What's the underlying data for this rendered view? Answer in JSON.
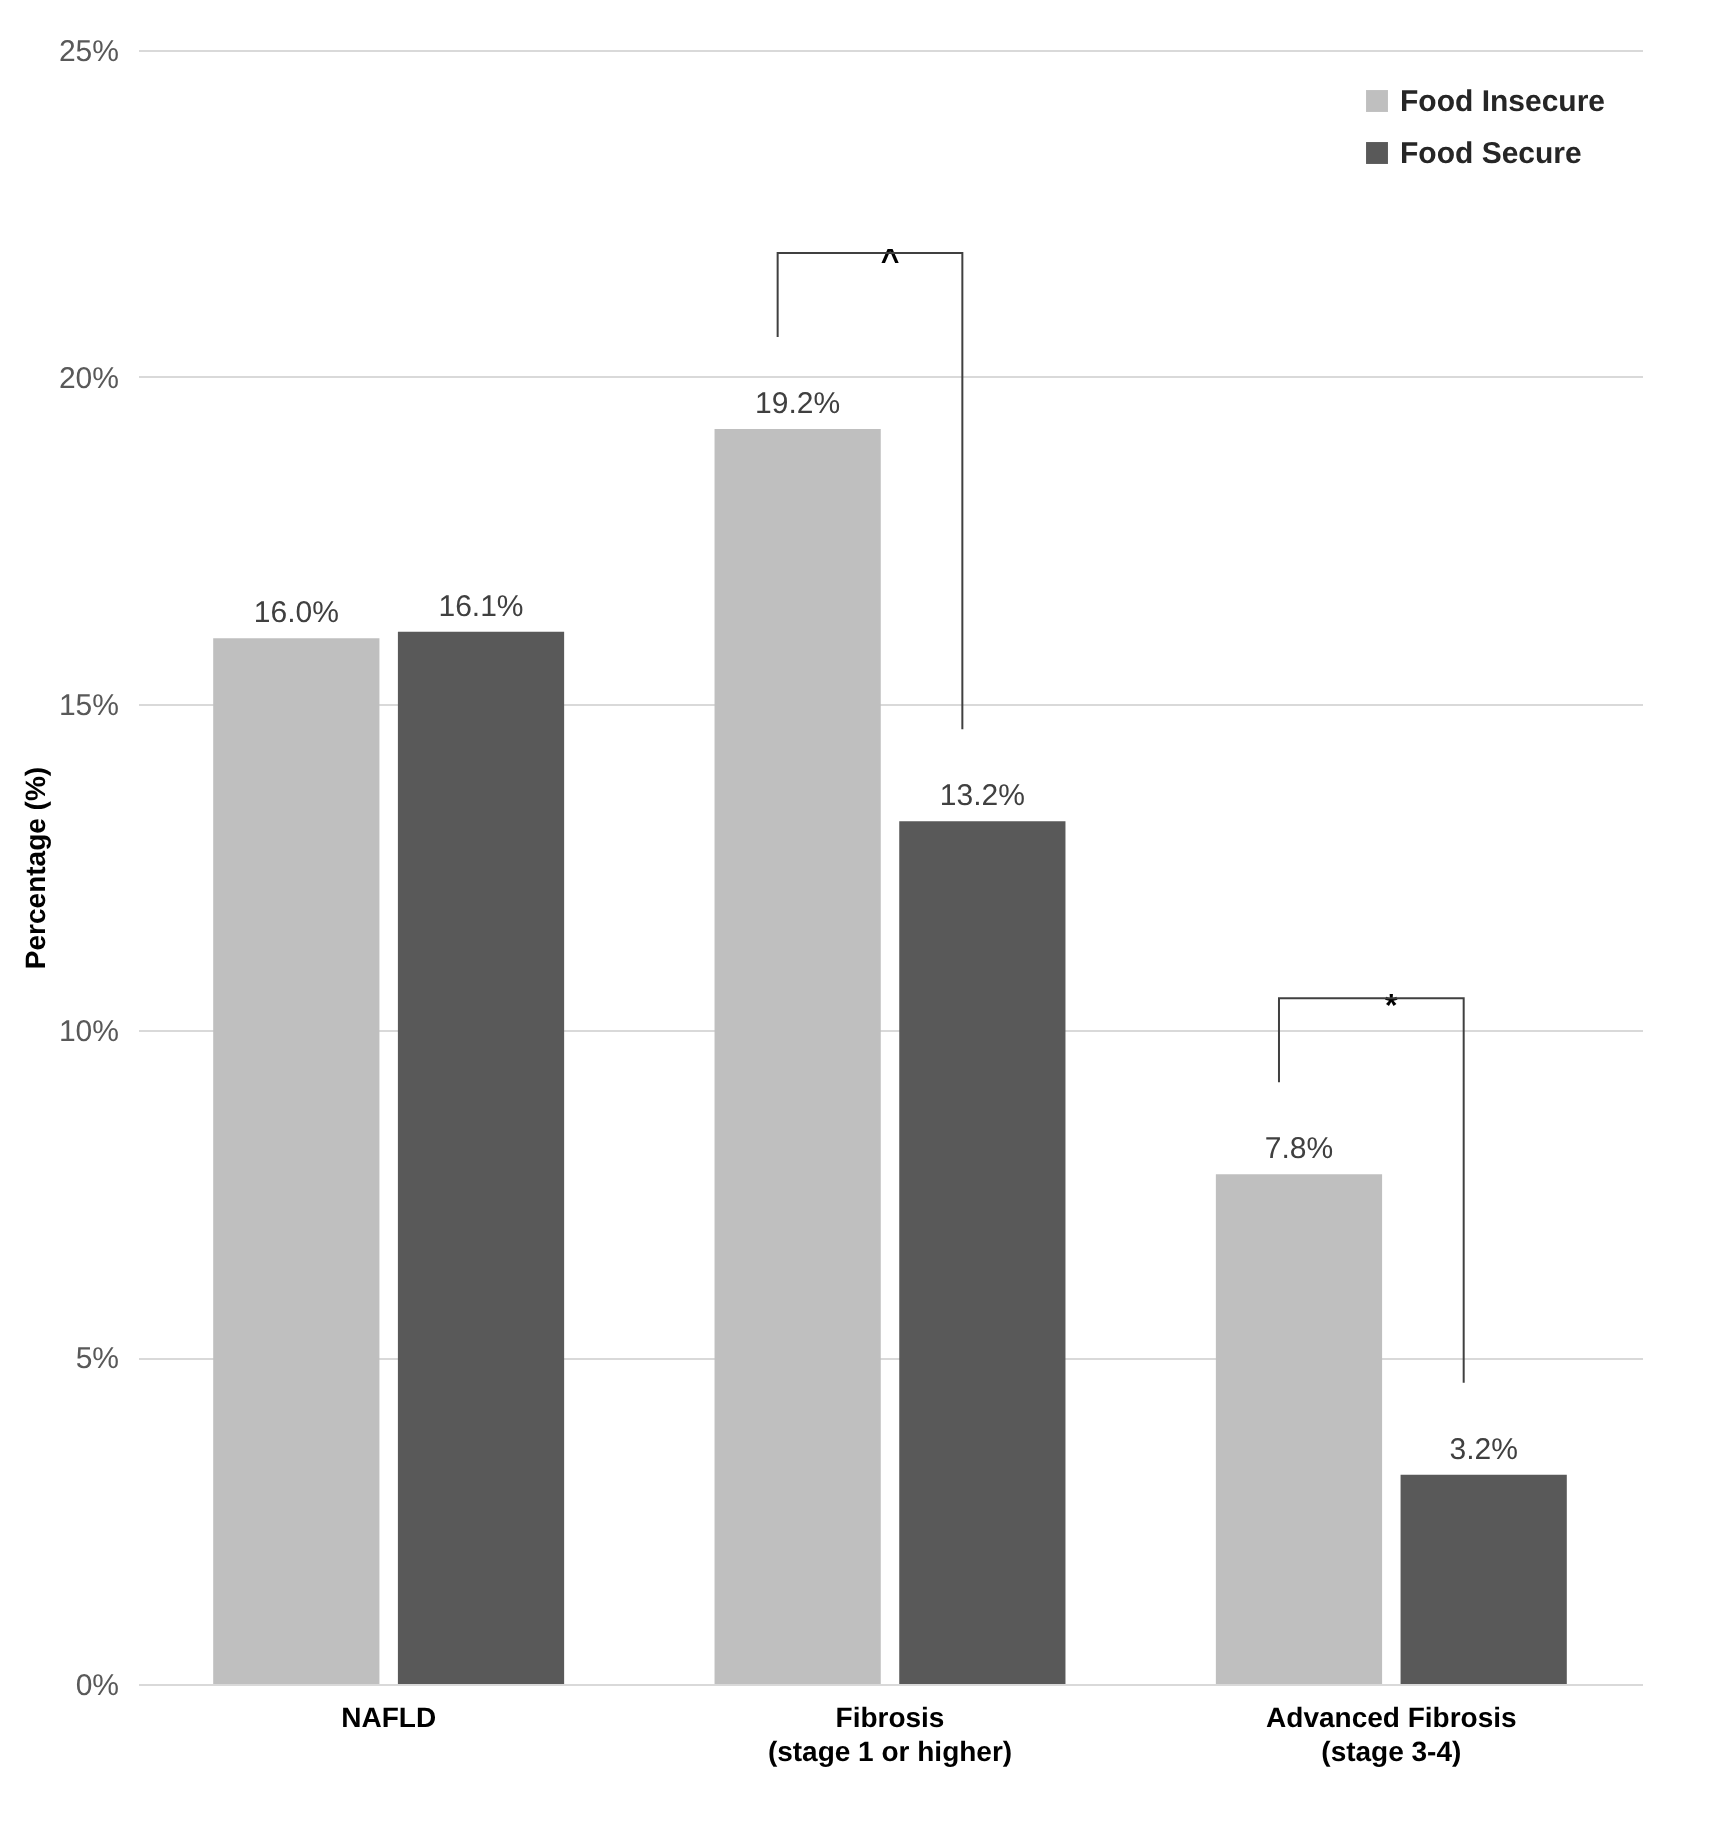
{
  "chart_data": {
    "type": "bar",
    "ylabel": "Percentage (%)",
    "categories": [
      "NAFLD",
      "Fibrosis\n(stage 1 or higher)",
      "Advanced Fibrosis\n(stage 3-4)"
    ],
    "series": [
      {
        "name": "Food Insecure",
        "color": "#bfbfbf",
        "values": [
          16.0,
          19.2,
          7.8
        ],
        "value_labels": [
          "16.0%",
          "19.2%",
          "7.8%"
        ]
      },
      {
        "name": "Food Secure",
        "color": "#595959",
        "values": [
          16.1,
          13.2,
          3.2
        ],
        "value_labels": [
          "16.1%",
          "13.2%",
          "3.2%"
        ]
      }
    ],
    "ylim": [
      0,
      25
    ],
    "yticks": [
      {
        "value": 0,
        "label": "0%"
      },
      {
        "value": 5,
        "label": "5%"
      },
      {
        "value": 10,
        "label": "10%"
      },
      {
        "value": 15,
        "label": "15%"
      },
      {
        "value": 20,
        "label": "20%"
      },
      {
        "value": 25,
        "label": "25%"
      }
    ],
    "grid": "y",
    "legend": "top right",
    "annotations": [
      "^",
      "*"
    ]
  }
}
